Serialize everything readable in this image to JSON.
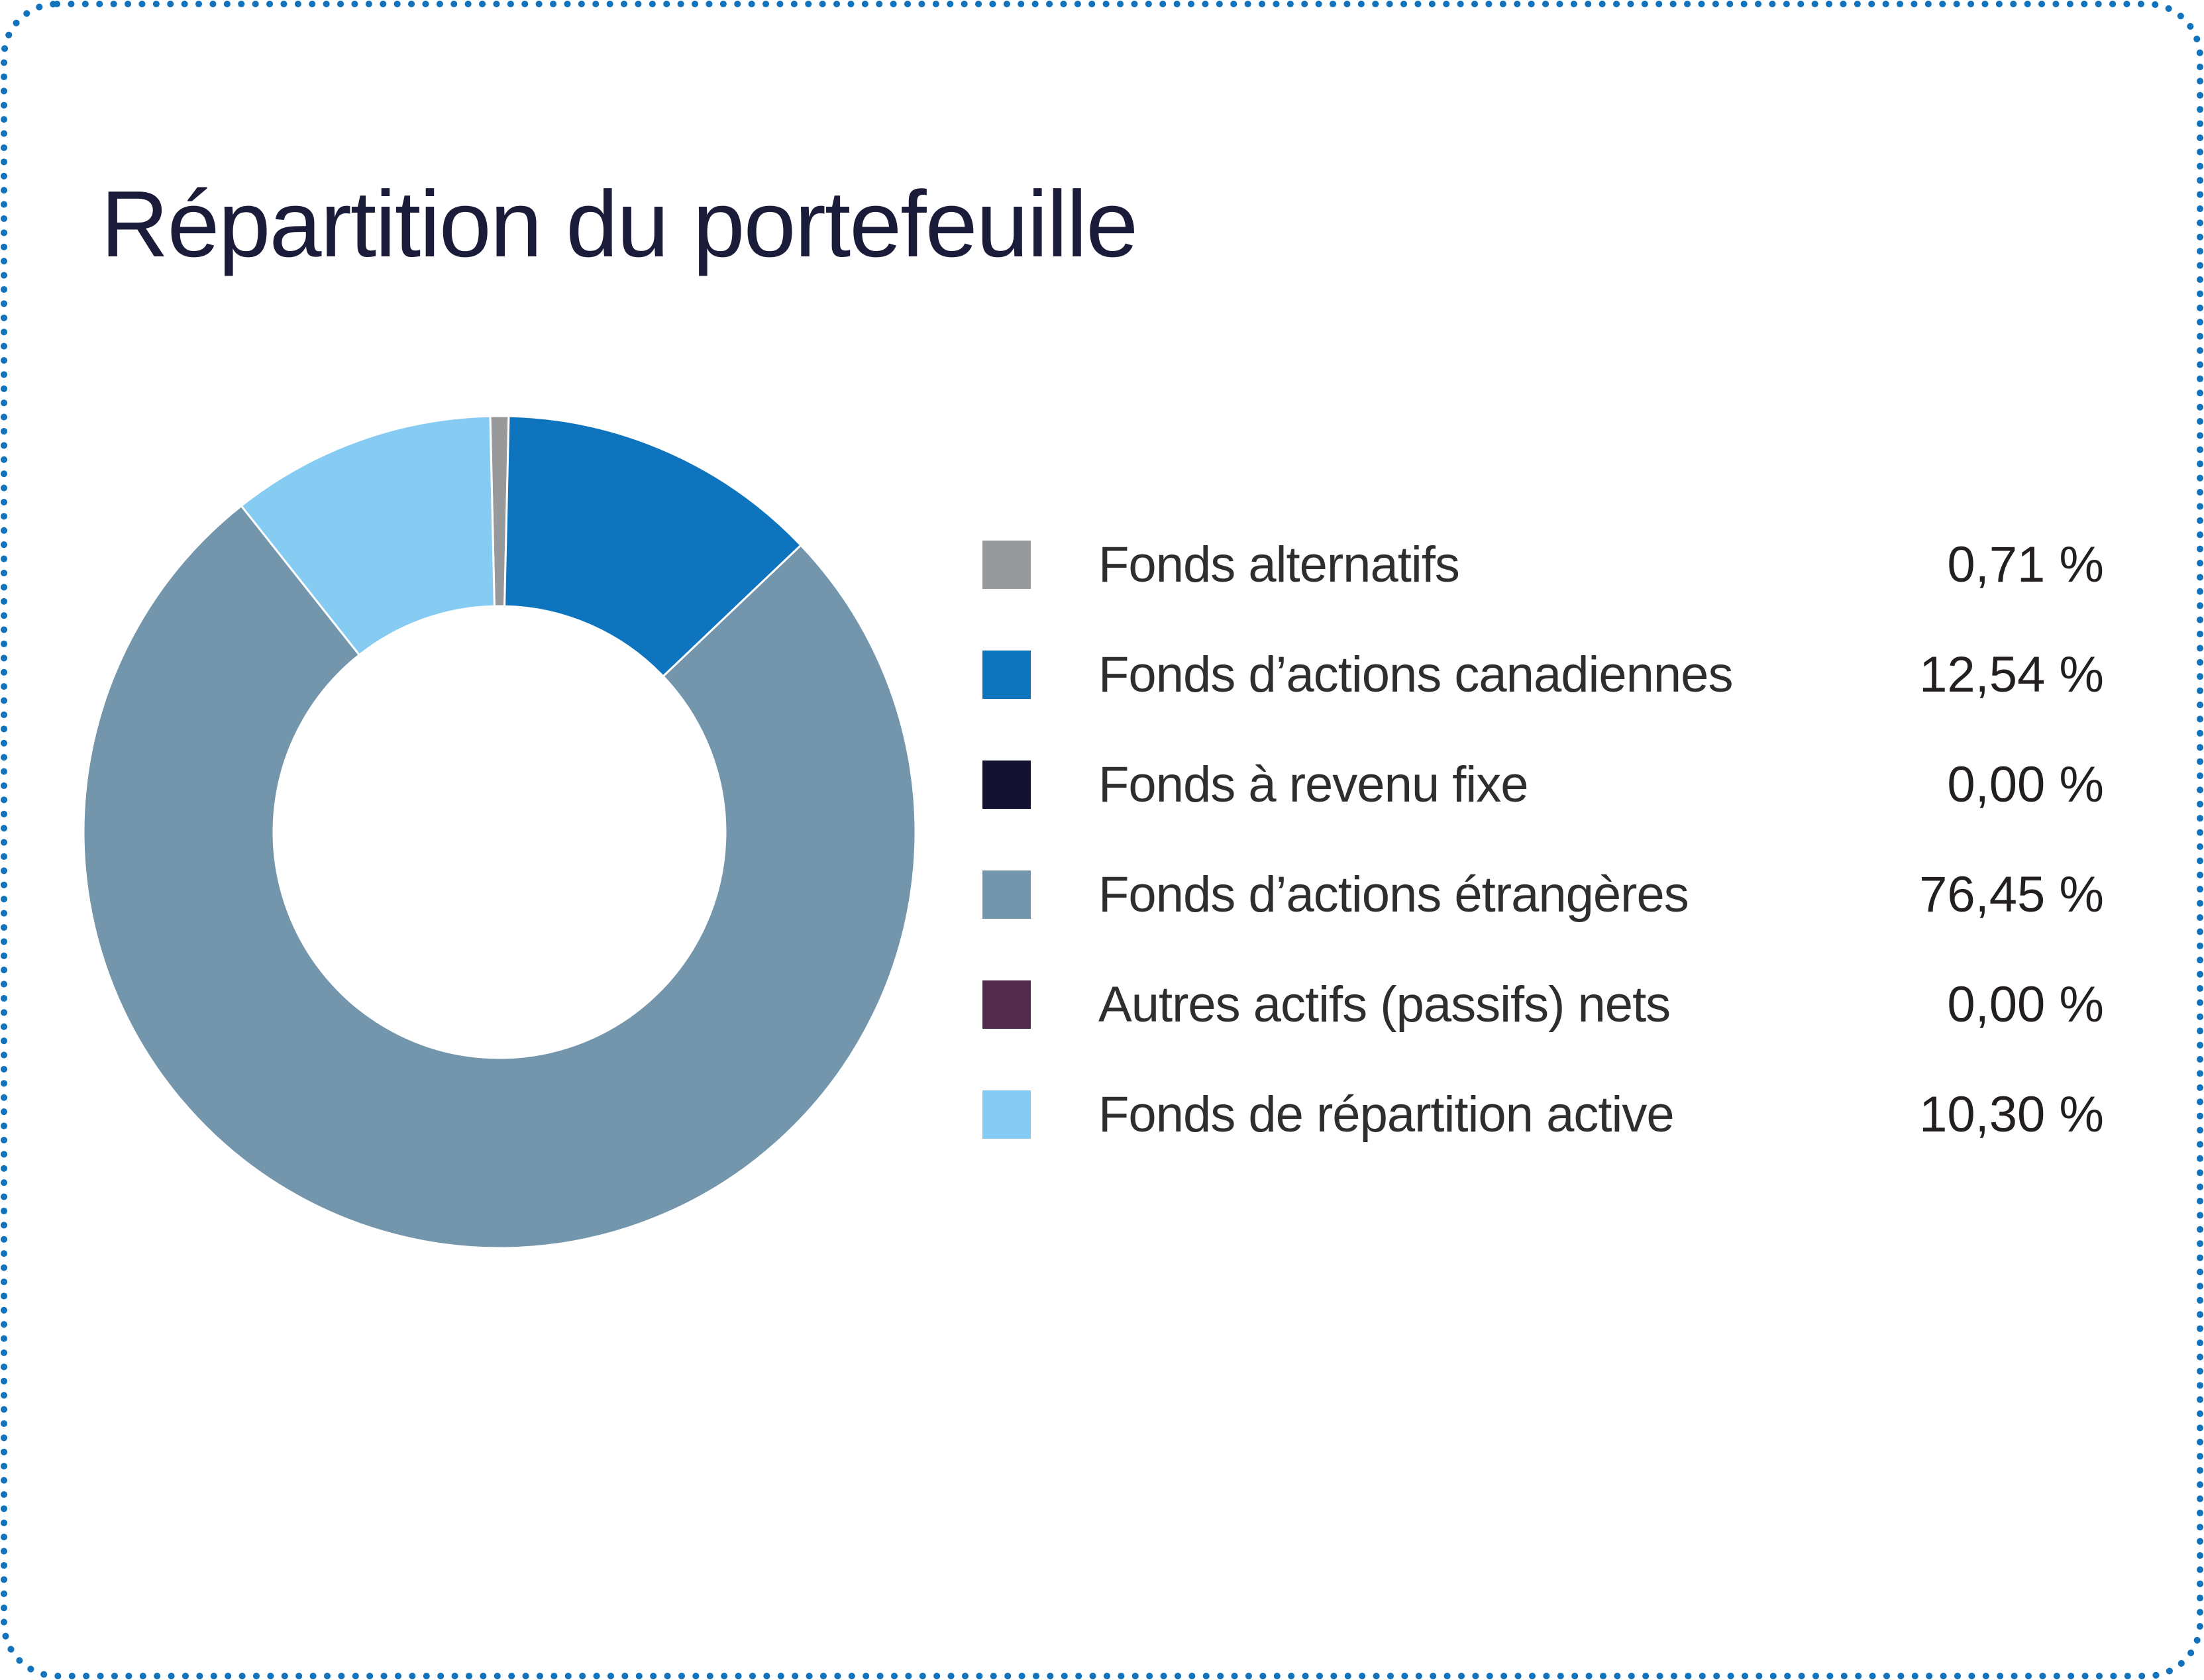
{
  "page": {
    "background": "#ffffff",
    "border_color": "#1273bc"
  },
  "header": {
    "title": "Répartition du portefeuille",
    "title_color": "#1b1b3a"
  },
  "chart_data": {
    "type": "pie",
    "subtype": "donut",
    "title": "Répartition du portefeuille",
    "legend_position": "right",
    "inner_radius_ratio": 0.543,
    "start_offset_deg": -1.28,
    "direction": "clockwise",
    "slice_border_color": "#ffffff",
    "categories": [
      "Fonds alternatifs",
      "Fonds d’actions canadiennes",
      "Fonds à revenu fixe",
      "Fonds d’actions étrangères",
      "Autres actifs (passifs) nets",
      "Fonds de répartition active"
    ],
    "series": [
      {
        "name": "Fonds alternatifs",
        "value": 0.71,
        "display_value": "0,71 %",
        "color": "#98999b"
      },
      {
        "name": "Fonds d’actions canadiennes",
        "value": 12.54,
        "display_value": "12,54 %",
        "color": "#0e74bd"
      },
      {
        "name": "Fonds à revenu fixe",
        "value": 0.0,
        "display_value": "0,00 %",
        "color": "#141233"
      },
      {
        "name": "Fonds d’actions étrangères",
        "value": 76.45,
        "display_value": "76,45 %",
        "color": "#7396ac"
      },
      {
        "name": "Autres actifs (passifs) nets",
        "value": 0.0,
        "display_value": "0,00 %",
        "color": "#532c4d"
      },
      {
        "name": "Fonds de répartition active",
        "value": 10.3,
        "display_value": "10,30 %",
        "color": "#85cbf2"
      }
    ]
  }
}
